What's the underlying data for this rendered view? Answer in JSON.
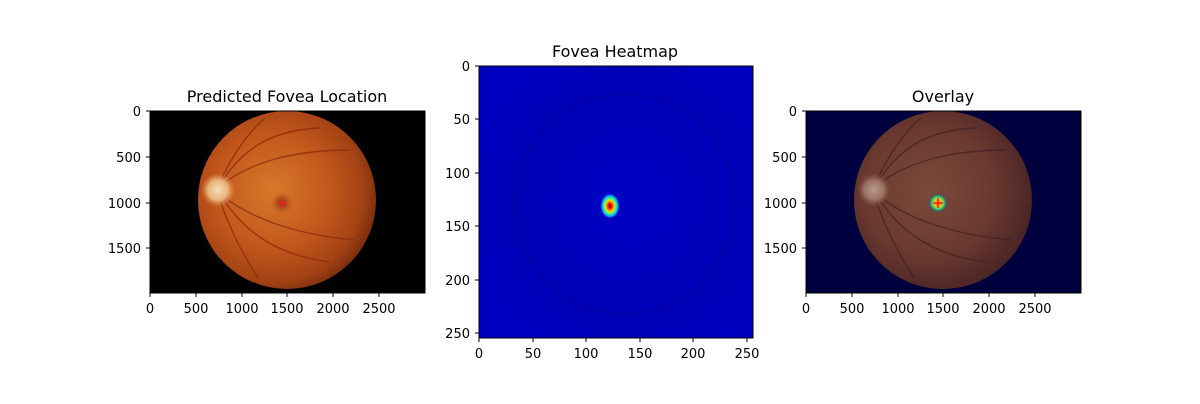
{
  "panels": [
    {
      "title": "Predicted Fovea Location",
      "image": "retinal-fundus-photo-with-red-cross-marker",
      "x_ticks": [
        "0",
        "500",
        "1000",
        "1500",
        "2000",
        "2500"
      ],
      "y_ticks": [
        "0",
        "500",
        "1000",
        "1500"
      ],
      "x_range": [
        0,
        3000
      ],
      "y_range": [
        1960,
        0
      ],
      "marker": {
        "x": 1440,
        "y": 1000,
        "color": "#ff2020"
      }
    },
    {
      "title": "Fovea Heatmap",
      "image": "jet-colormap-heatmap",
      "x_ticks": [
        "0",
        "50",
        "100",
        "150",
        "200",
        "250"
      ],
      "y_ticks": [
        "0",
        "50",
        "100",
        "150",
        "200",
        "250"
      ],
      "x_range": [
        0,
        256
      ],
      "y_range": [
        256,
        0
      ],
      "hotspot": {
        "x": 123,
        "y": 131
      }
    },
    {
      "title": "Overlay",
      "image": "fundus-photo-blended-with-heatmap",
      "x_ticks": [
        "0",
        "500",
        "1000",
        "1500",
        "2000",
        "2500"
      ],
      "y_ticks": [
        "0",
        "500",
        "1000",
        "1500"
      ],
      "x_range": [
        0,
        3000
      ],
      "y_range": [
        1960,
        0
      ],
      "marker": {
        "x": 1440,
        "y": 1000,
        "color": "#ff2020"
      }
    }
  ]
}
